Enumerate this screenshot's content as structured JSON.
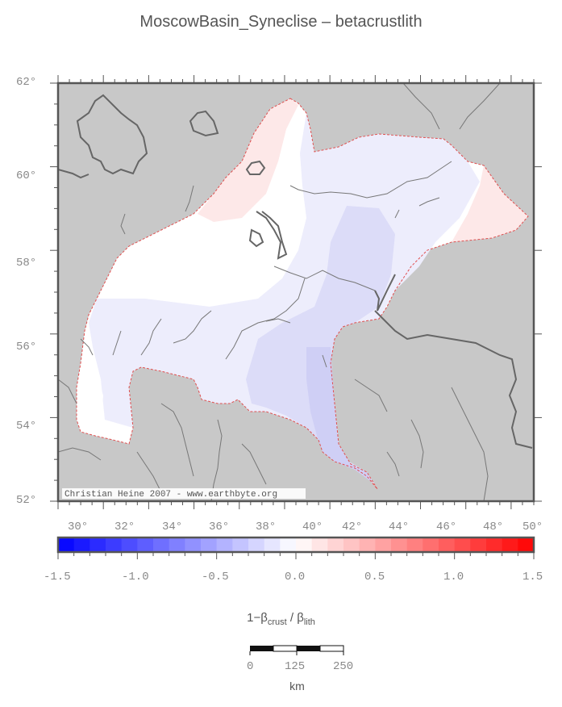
{
  "title": "MoscowBasin_Syneclise – betacrustlith",
  "map": {
    "lat_labels": [
      "62°",
      "60°",
      "58°",
      "56°",
      "54°",
      "52°"
    ],
    "lon_labels": [
      "30°",
      "32°",
      "34°",
      "36°",
      "38°",
      "40°",
      "42°",
      "44°",
      "46°",
      "48°",
      "50°"
    ],
    "credit": "Christian Heine 2007 - www.earthbyte.org",
    "background_color": "#c8c8c8",
    "outline_color": "#e05050"
  },
  "colorbar": {
    "tick_labels": [
      "-1.5",
      "-1.0",
      "-0.5",
      "0.0",
      "0.5",
      "1.0",
      "1.5"
    ],
    "label_main": "1−β",
    "label_sub1": "crust",
    "label_sep": " / β",
    "label_sub2": "lith",
    "low_color": "#0000ff",
    "high_color": "#ff0000"
  },
  "scalebar": {
    "labels": [
      "0",
      "125",
      "250"
    ],
    "unit": "km"
  }
}
